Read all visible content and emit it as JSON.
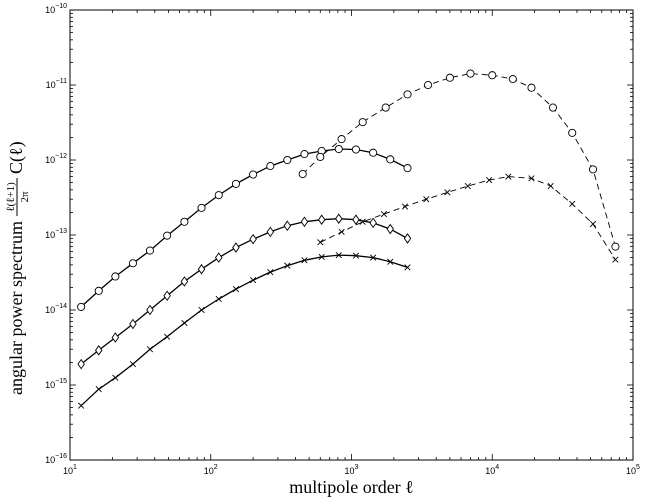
{
  "chart_data": {
    "type": "line",
    "x_scale": "log",
    "y_scale": "log",
    "xlim": [
      10,
      100000
    ],
    "ylim": [
      1e-16,
      1e-10
    ],
    "grid": false,
    "xlabel": "multipole order ℓ",
    "ylabel": "angular power spectrum",
    "ylabel_formula": {
      "fraction_numerator": "ℓ(ℓ+1)",
      "fraction_denominator": "2π",
      "function": "C(ℓ)"
    },
    "x_ticks": [
      {
        "value": 10,
        "label": "10",
        "exp": "1"
      },
      {
        "value": 100,
        "label": "10",
        "exp": "2"
      },
      {
        "value": 1000,
        "label": "10",
        "exp": "3"
      },
      {
        "value": 10000,
        "label": "10",
        "exp": "4"
      },
      {
        "value": 100000,
        "label": "10",
        "exp": "5"
      }
    ],
    "y_ticks": [
      {
        "value": 1e-16,
        "label": "10",
        "exp": "−16"
      },
      {
        "value": 1e-15,
        "label": "10",
        "exp": "−15"
      },
      {
        "value": 1e-14,
        "label": "10",
        "exp": "−14"
      },
      {
        "value": 1e-13,
        "label": "10",
        "exp": "−13"
      },
      {
        "value": 1e-12,
        "label": "10",
        "exp": "−12"
      },
      {
        "value": 1e-11,
        "label": "10",
        "exp": "−11"
      },
      {
        "value": 1e-10,
        "label": "10",
        "exp": "−10"
      }
    ],
    "series": [
      {
        "marker": "circle",
        "line": "solid",
        "x": [
          12,
          16,
          21,
          28,
          37,
          49,
          65,
          86,
          114,
          151,
          200,
          265,
          350,
          463,
          614,
          812,
          1075,
          1425,
          1885,
          2500
        ],
        "y": [
          1.1e-14,
          1.8e-14,
          2.8e-14,
          4.2e-14,
          6.2e-14,
          9.8e-14,
          1.5e-13,
          2.3e-13,
          3.4e-13,
          4.8e-13,
          6.4e-13,
          8.3e-13,
          1e-12,
          1.2e-12,
          1.32e-12,
          1.4e-12,
          1.38e-12,
          1.25e-12,
          1.02e-12,
          7.8e-13
        ]
      },
      {
        "marker": "diamond",
        "line": "solid",
        "x": [
          12,
          16,
          21,
          28,
          37,
          49,
          65,
          86,
          114,
          151,
          200,
          265,
          350,
          463,
          614,
          812,
          1075,
          1425,
          1885,
          2500
        ],
        "y": [
          1.9e-15,
          2.9e-15,
          4.3e-15,
          6.5e-15,
          1e-14,
          1.55e-14,
          2.4e-14,
          3.5e-14,
          5e-14,
          6.8e-14,
          8.8e-14,
          1.1e-13,
          1.33e-13,
          1.5e-13,
          1.6e-13,
          1.65e-13,
          1.6e-13,
          1.45e-13,
          1.2e-13,
          9e-14
        ]
      },
      {
        "marker": "x",
        "line": "solid",
        "x": [
          12,
          16,
          21,
          28,
          37,
          49,
          65,
          86,
          114,
          151,
          200,
          265,
          350,
          463,
          614,
          812,
          1075,
          1425,
          1885,
          2500
        ],
        "y": [
          5.3e-16,
          8.8e-16,
          1.25e-15,
          1.9e-15,
          3e-15,
          4.4e-15,
          6.7e-15,
          1e-14,
          1.4e-14,
          1.9e-14,
          2.5e-14,
          3.2e-14,
          3.9e-14,
          4.6e-14,
          5.1e-14,
          5.4e-14,
          5.3e-14,
          5e-14,
          4.4e-14,
          3.7e-14
        ]
      },
      {
        "marker": "circle",
        "line": "dashed",
        "x": [
          450,
          600,
          850,
          1200,
          1750,
          2500,
          3500,
          5000,
          7000,
          10000,
          14000,
          19000,
          27000,
          37000,
          52000,
          75000
        ],
        "y": [
          6.5e-13,
          1.1e-12,
          1.9e-12,
          3.2e-12,
          5e-12,
          7.5e-12,
          1e-11,
          1.25e-11,
          1.42e-11,
          1.35e-11,
          1.2e-11,
          9.2e-12,
          5e-12,
          2.3e-12,
          7.5e-13,
          7e-14
        ]
      },
      {
        "marker": "x",
        "line": "dashed",
        "x": [
          600,
          850,
          1200,
          1700,
          2400,
          3400,
          4800,
          6700,
          9500,
          13000,
          19000,
          26000,
          37000,
          52000,
          75000
        ],
        "y": [
          8e-14,
          1.1e-13,
          1.5e-13,
          1.9e-13,
          2.4e-13,
          3e-13,
          3.7e-13,
          4.5e-13,
          5.4e-13,
          6e-13,
          5.7e-13,
          4.5e-13,
          2.6e-13,
          1.4e-13,
          4.7e-14
        ]
      }
    ]
  }
}
